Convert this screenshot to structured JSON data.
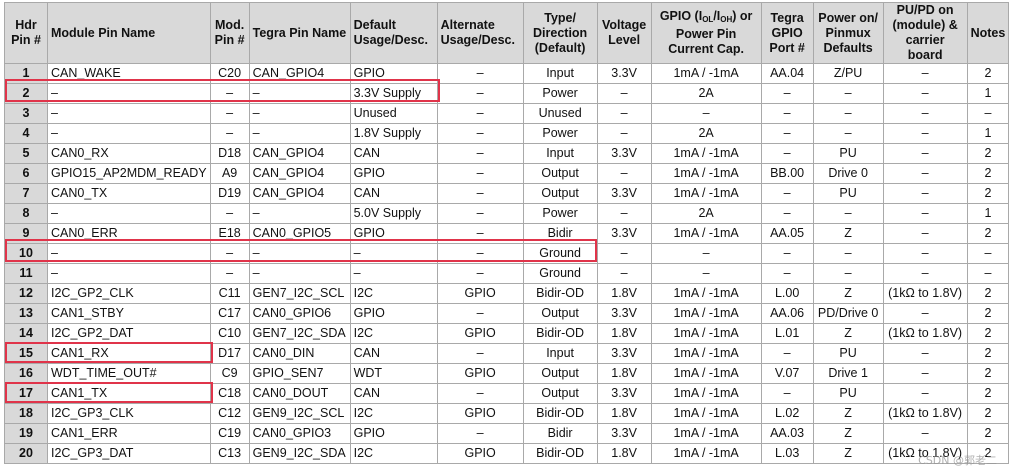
{
  "header": {
    "hdr_pin": "Hdr Pin #",
    "module_pin_name": "Module Pin Name",
    "mod_pin": "Mod. Pin #",
    "tegra_pin_name": "Tegra Pin Name",
    "default_usage": "Default Usage/Desc.",
    "alternate_usage": "Alternate Usage/Desc.",
    "type_direction": "Type/ Direction (Default)",
    "voltage_level": "Voltage Level",
    "gpio_cap_pre": "GPIO (I",
    "gpio_cap_sub1": "OL",
    "gpio_cap_mid": "/I",
    "gpio_cap_sub2": "OH",
    "gpio_cap_post": ") or Power Pin Current Cap.",
    "tegra_gpio_port": "Tegra GPIO Port #",
    "power_on_defaults": "Power on/ Pinmux Defaults",
    "pu_pd": "PU/PD on (module) & carrier board",
    "notes": "Notes"
  },
  "rows": [
    {
      "pin": "1",
      "name": "CAN_WAKE",
      "mod": "C20",
      "tegra": "CAN_GPIO4",
      "def": "GPIO",
      "alt": "–",
      "type": "Input",
      "volt": "3.3V",
      "cap": "1mA / -1mA",
      "port": "AA.04",
      "pon": "Z/PU",
      "pupd": "–",
      "note": "2"
    },
    {
      "pin": "2",
      "name": "–",
      "mod": "–",
      "tegra": "–",
      "def": "3.3V Supply",
      "alt": "–",
      "type": "Power",
      "volt": "–",
      "cap": "2A",
      "port": "–",
      "pon": "–",
      "pupd": "–",
      "note": "1"
    },
    {
      "pin": "3",
      "name": "–",
      "mod": "–",
      "tegra": "–",
      "def": "Unused",
      "alt": "–",
      "type": "Unused",
      "volt": "–",
      "cap": "–",
      "port": "–",
      "pon": "–",
      "pupd": "–",
      "note": "–"
    },
    {
      "pin": "4",
      "name": "–",
      "mod": "–",
      "tegra": "–",
      "def": "1.8V Supply",
      "alt": "–",
      "type": "Power",
      "volt": "–",
      "cap": "2A",
      "port": "–",
      "pon": "–",
      "pupd": "–",
      "note": "1"
    },
    {
      "pin": "5",
      "name": "CAN0_RX",
      "mod": "D18",
      "tegra": "CAN_GPIO4",
      "def": "CAN",
      "alt": "–",
      "type": "Input",
      "volt": "3.3V",
      "cap": "1mA / -1mA",
      "port": "–",
      "pon": "PU",
      "pupd": "–",
      "note": "2"
    },
    {
      "pin": "6",
      "name": "GPIO15_AP2MDM_READY",
      "mod": "A9",
      "tegra": "CAN_GPIO4",
      "def": "GPIO",
      "alt": "–",
      "type": "Output",
      "volt": "–",
      "cap": "1mA / -1mA",
      "port": "BB.00",
      "pon": "Drive 0",
      "pupd": "–",
      "note": "2"
    },
    {
      "pin": "7",
      "name": "CAN0_TX",
      "mod": "D19",
      "tegra": "CAN_GPIO4",
      "def": "CAN",
      "alt": "–",
      "type": "Output",
      "volt": "3.3V",
      "cap": "1mA / -1mA",
      "port": "–",
      "pon": "PU",
      "pupd": "–",
      "note": "2"
    },
    {
      "pin": "8",
      "name": "–",
      "mod": "–",
      "tegra": "–",
      "def": "5.0V Supply",
      "alt": "–",
      "type": "Power",
      "volt": "–",
      "cap": "2A",
      "port": "–",
      "pon": "–",
      "pupd": "–",
      "note": "1"
    },
    {
      "pin": "9",
      "name": "CAN0_ERR",
      "mod": "E18",
      "tegra": "CAN0_GPIO5",
      "def": "GPIO",
      "alt": "–",
      "type": "Bidir",
      "volt": "3.3V",
      "cap": "1mA / -1mA",
      "port": "AA.05",
      "pon": "Z",
      "pupd": "–",
      "note": "2"
    },
    {
      "pin": "10",
      "name": "–",
      "mod": "–",
      "tegra": "–",
      "def": "–",
      "alt": "–",
      "type": "Ground",
      "volt": "–",
      "cap": "–",
      "port": "–",
      "pon": "–",
      "pupd": "–",
      "note": "–"
    },
    {
      "pin": "11",
      "name": "–",
      "mod": "–",
      "tegra": "–",
      "def": "–",
      "alt": "–",
      "type": "Ground",
      "volt": "–",
      "cap": "–",
      "port": "–",
      "pon": "–",
      "pupd": "–",
      "note": "–"
    },
    {
      "pin": "12",
      "name": "I2C_GP2_CLK",
      "mod": "C11",
      "tegra": "GEN7_I2C_SCL",
      "def": "I2C",
      "alt": "GPIO",
      "type": "Bidir-OD",
      "volt": "1.8V",
      "cap": "1mA / -1mA",
      "port": "L.00",
      "pon": "Z",
      "pupd": "(1kΩ to 1.8V)",
      "note": "2"
    },
    {
      "pin": "13",
      "name": "CAN1_STBY",
      "mod": "C17",
      "tegra": "CAN0_GPIO6",
      "def": "GPIO",
      "alt": "–",
      "type": "Output",
      "volt": "3.3V",
      "cap": "1mA / -1mA",
      "port": "AA.06",
      "pon": "PD/Drive 0",
      "pupd": "–",
      "note": "2"
    },
    {
      "pin": "14",
      "name": "I2C_GP2_DAT",
      "mod": "C10",
      "tegra": "GEN7_I2C_SDA",
      "def": "I2C",
      "alt": "GPIO",
      "type": "Bidir-OD",
      "volt": "1.8V",
      "cap": "1mA / -1mA",
      "port": "L.01",
      "pon": "Z",
      "pupd": "(1kΩ to 1.8V)",
      "note": "2"
    },
    {
      "pin": "15",
      "name": "CAN1_RX",
      "mod": "D17",
      "tegra": "CAN0_DIN",
      "def": "CAN",
      "alt": "–",
      "type": "Input",
      "volt": "3.3V",
      "cap": "1mA / -1mA",
      "port": "–",
      "pon": "PU",
      "pupd": "–",
      "note": "2"
    },
    {
      "pin": "16",
      "name": "WDT_TIME_OUT#",
      "mod": "C9",
      "tegra": "GPIO_SEN7",
      "def": "WDT",
      "alt": "GPIO",
      "type": "Output",
      "volt": "1.8V",
      "cap": "1mA / -1mA",
      "port": "V.07",
      "pon": "Drive 1",
      "pupd": "–",
      "note": "2"
    },
    {
      "pin": "17",
      "name": "CAN1_TX",
      "mod": "C18",
      "tegra": "CAN0_DOUT",
      "def": "CAN",
      "alt": "–",
      "type": "Output",
      "volt": "3.3V",
      "cap": "1mA / -1mA",
      "port": "–",
      "pon": "PU",
      "pupd": "–",
      "note": "2"
    },
    {
      "pin": "18",
      "name": "I2C_GP3_CLK",
      "mod": "C12",
      "tegra": "GEN9_I2C_SCL",
      "def": "I2C",
      "alt": "GPIO",
      "type": "Bidir-OD",
      "volt": "1.8V",
      "cap": "1mA / -1mA",
      "port": "L.02",
      "pon": "Z",
      "pupd": "(1kΩ to 1.8V)",
      "note": "2"
    },
    {
      "pin": "19",
      "name": "CAN1_ERR",
      "mod": "C19",
      "tegra": "CAN0_GPIO3",
      "def": "GPIO",
      "alt": "–",
      "type": "Bidir",
      "volt": "3.3V",
      "cap": "1mA / -1mA",
      "port": "AA.03",
      "pon": "Z",
      "pupd": "–",
      "note": "2"
    },
    {
      "pin": "20",
      "name": "I2C_GP3_DAT",
      "mod": "C13",
      "tegra": "GEN9_I2C_SDA",
      "def": "I2C",
      "alt": "GPIO",
      "type": "Bidir-OD",
      "volt": "1.8V",
      "cap": "1mA / -1mA",
      "port": "L.03",
      "pon": "Z",
      "pupd": "(1kΩ to 1.8V)",
      "note": "2"
    }
  ],
  "watermark": "CSDN @郭老二"
}
